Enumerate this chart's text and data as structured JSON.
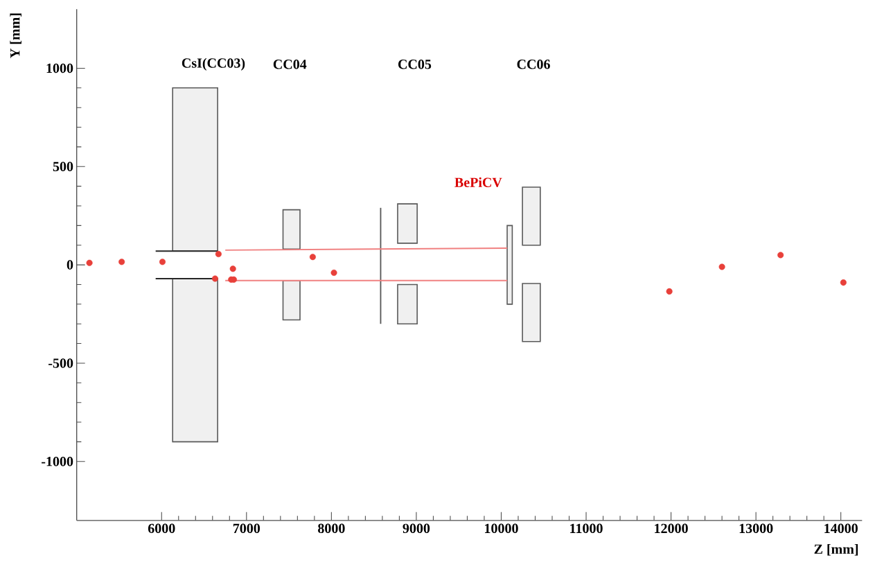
{
  "chart_data": {
    "type": "scatter",
    "xlabel": "Z [mm]",
    "ylabel": "Y [mm]",
    "xlim": [
      5000,
      14250
    ],
    "ylim": [
      -1300,
      1300
    ],
    "xticks": [
      6000,
      7000,
      8000,
      9000,
      10000,
      11000,
      12000,
      13000,
      14000
    ],
    "yticks": [
      -1000,
      -500,
      0,
      500,
      1000
    ],
    "grid": false,
    "series": [
      {
        "type": "line",
        "color": "#f08080",
        "x": [
          6750,
          10070
        ],
        "values": [
          75,
          85
        ]
      },
      {
        "type": "line",
        "color": "#f08080",
        "x": [
          6750,
          10070
        ],
        "values": [
          -80,
          -80
        ]
      },
      {
        "color": "#e8403a",
        "marker": "circle",
        "x": [
          5150,
          5530,
          6010,
          6670,
          6840,
          6630,
          6820,
          6850,
          7780,
          8030,
          11980,
          12600,
          13290,
          14030
        ],
        "values": [
          10,
          15,
          15,
          55,
          -20,
          -70,
          -75,
          -75,
          40,
          -40,
          -135,
          -10,
          50,
          -90
        ]
      }
    ],
    "annotations": [
      "CsI(CC03)",
      "CC04",
      "CC05",
      "CC06",
      "BePiCV"
    ]
  }
}
